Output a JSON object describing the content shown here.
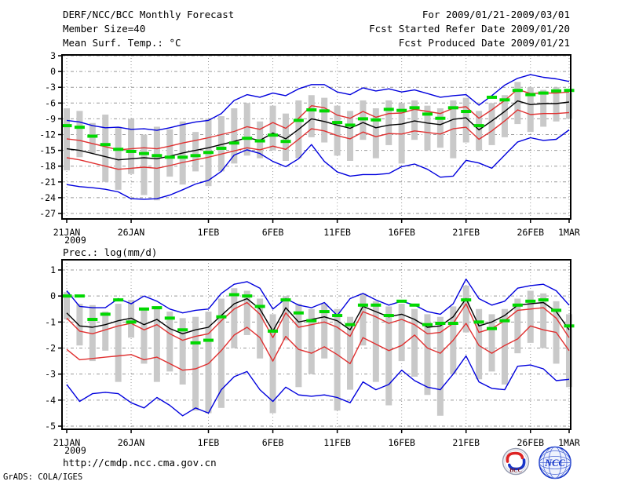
{
  "header": {
    "left": [
      "DERF/NCC/BCC Monthly Forecast",
      "Member Size=40"
    ],
    "right": [
      "For 2009/01/21-2009/03/01",
      "Fcst Started Refer Date 2009/01/20",
      "Fcst Produced Date 2009/01/21"
    ]
  },
  "footer": {
    "url": "http://cmdp.ncc.cma.gov.cn",
    "credit": "GrADS: COLA/IGES",
    "bcc_logo_label": "BCC",
    "ncc_logo_label": "NCC"
  },
  "colors": {
    "ensemble_mean": "#000000",
    "bounds_red": "#e03030",
    "extremes_blue": "#0000dd",
    "observation_green": "#00d800",
    "spread_bar_gray": "#c9c9c9",
    "grid_gray": "#999999",
    "frame_black": "#000000"
  },
  "chart_data": [
    {
      "type": "line",
      "title": "Mean Surf. Temp.: °C",
      "x_tick_labels": [
        "21JAN",
        "26JAN",
        "1FEB",
        "6FEB",
        "11FEB",
        "16FEB",
        "21FEB",
        "26FEB",
        "1MAR"
      ],
      "x_tick_days": [
        0,
        5,
        11,
        16,
        21,
        26,
        31,
        36,
        39
      ],
      "year_label": "2009",
      "y_ticks": [
        3,
        0,
        -3,
        -6,
        -9,
        -12,
        -15,
        -18,
        -21,
        -24,
        -27
      ],
      "ylim": [
        -28.2,
        3.2
      ],
      "n_days": 40,
      "grid": true,
      "legend": "none",
      "series": [
        {
          "name": "ensemble-max",
          "color": "#0000dd",
          "values": [
            -9.3,
            -9.6,
            -10.3,
            -10.7,
            -10.6,
            -11.0,
            -10.9,
            -11.2,
            -10.7,
            -10.1,
            -9.6,
            -9.3,
            -8.0,
            -5.5,
            -4.4,
            -4.9,
            -4.1,
            -4.6,
            -3.3,
            -2.5,
            -2.5,
            -3.9,
            -4.4,
            -3.1,
            -3.7,
            -3.3,
            -3.9,
            -3.5,
            -4.2,
            -4.9,
            -4.6,
            -4.4,
            -6.4,
            -4.6,
            -2.6,
            -1.3,
            -0.6,
            -1.1,
            -1.4,
            -1.9
          ]
        },
        {
          "name": "upper-bound",
          "color": "#e03030",
          "values": [
            -12.8,
            -13.1,
            -13.7,
            -14.3,
            -14.9,
            -14.7,
            -14.5,
            -14.7,
            -14.2,
            -13.6,
            -13.1,
            -12.6,
            -12.0,
            -11.4,
            -10.5,
            -11.0,
            -9.7,
            -10.8,
            -8.9,
            -6.5,
            -6.9,
            -8.3,
            -8.9,
            -7.6,
            -8.7,
            -8.0,
            -7.9,
            -7.2,
            -7.6,
            -8.0,
            -7.0,
            -6.7,
            -8.9,
            -7.3,
            -5.5,
            -3.4,
            -4.2,
            -4.1,
            -4.1,
            -3.9
          ]
        },
        {
          "name": "ensemble-mean",
          "color": "#000000",
          "values": [
            -14.7,
            -15.0,
            -15.6,
            -16.2,
            -16.8,
            -16.6,
            -16.4,
            -16.6,
            -16.1,
            -15.5,
            -15.0,
            -14.5,
            -13.9,
            -13.3,
            -12.6,
            -13.1,
            -11.7,
            -12.8,
            -11.0,
            -9.0,
            -9.5,
            -10.2,
            -10.8,
            -9.7,
            -10.7,
            -10.2,
            -10.0,
            -9.4,
            -9.8,
            -10.1,
            -9.1,
            -8.8,
            -11.1,
            -9.4,
            -7.6,
            -5.6,
            -6.3,
            -6.1,
            -6.1,
            -5.8
          ]
        },
        {
          "name": "lower-bound",
          "color": "#e03030",
          "values": [
            -16.4,
            -16.8,
            -17.4,
            -18.0,
            -18.6,
            -18.4,
            -18.2,
            -18.4,
            -17.9,
            -17.3,
            -16.8,
            -16.3,
            -15.7,
            -15.1,
            -14.5,
            -14.9,
            -14.2,
            -14.8,
            -12.9,
            -10.9,
            -11.3,
            -12.2,
            -12.8,
            -11.5,
            -12.4,
            -11.8,
            -11.9,
            -11.3,
            -11.6,
            -11.9,
            -10.9,
            -10.6,
            -12.9,
            -11.3,
            -9.4,
            -7.3,
            -8.2,
            -8.0,
            -8.0,
            -7.8
          ]
        },
        {
          "name": "ensemble-min",
          "color": "#0000dd",
          "values": [
            -21.5,
            -21.9,
            -22.1,
            -22.4,
            -22.9,
            -24.2,
            -24.3,
            -24.2,
            -23.5,
            -22.5,
            -21.4,
            -20.7,
            -19.0,
            -15.9,
            -14.9,
            -15.6,
            -17.1,
            -18.1,
            -16.6,
            -13.9,
            -17.1,
            -19.1,
            -19.9,
            -19.6,
            -19.6,
            -19.4,
            -18.1,
            -17.6,
            -18.6,
            -20.1,
            -19.9,
            -16.9,
            -17.4,
            -18.4,
            -15.9,
            -13.4,
            -12.6,
            -13.1,
            -12.9,
            -11.1
          ]
        }
      ],
      "obs_dashes": {
        "name": "observation",
        "color": "#00d800",
        "values": [
          -10.3,
          -10.6,
          -12.3,
          -13.9,
          -14.8,
          -15.2,
          -15.6,
          -16.0,
          -16.3,
          -16.3,
          -16.0,
          -15.4,
          -14.6,
          -13.6,
          -12.7,
          -13.2,
          -12.1,
          -13.3,
          -9.3,
          -7.3,
          -7.5,
          -9.7,
          -10.2,
          -9.0,
          -9.2,
          -7.2,
          -7.4,
          -6.9,
          -8.1,
          -8.9,
          -6.9,
          -7.6,
          -10.3,
          -4.9,
          -5.4,
          -3.6,
          -4.4,
          -4.1,
          -3.7,
          -3.6
        ]
      },
      "spread_bars": {
        "name": "ensemble-spread",
        "color": "#c9c9c9",
        "top": [
          -7.0,
          -7.5,
          -9.8,
          -8.2,
          -10.5,
          -9.0,
          -12.0,
          -10.5,
          -11.0,
          -9.5,
          -11.5,
          -9.0,
          -8.5,
          -7.0,
          -6.0,
          -9.5,
          -6.5,
          -8.0,
          -5.5,
          -4.5,
          -5.0,
          -6.5,
          -7.5,
          -5.5,
          -7.0,
          -5.5,
          -6.0,
          -5.5,
          -6.5,
          -7.0,
          -5.5,
          -5.0,
          -7.5,
          -6.0,
          -4.5,
          -2.0,
          -3.0,
          -3.5,
          -3.0,
          -4.0
        ],
        "bottom": [
          -18.8,
          -16.3,
          -15.5,
          -21.0,
          -22.5,
          -19.5,
          -23.5,
          -24.5,
          -20.0,
          -21.5,
          -19.0,
          -21.8,
          -19.0,
          -17.5,
          -16.0,
          -16.5,
          -15.0,
          -17.0,
          -16.5,
          -12.5,
          -13.5,
          -16.0,
          -17.0,
          -13.0,
          -16.5,
          -14.0,
          -17.5,
          -13.0,
          -15.0,
          -14.5,
          -16.5,
          -13.5,
          -15.0,
          -14.0,
          -12.5,
          -10.0,
          -11.5,
          -10.5,
          -9.5,
          -9.0
        ]
      }
    },
    {
      "type": "line",
      "title": "Prec.: log(mm/d)",
      "x_tick_labels": [
        "21JAN",
        "26JAN",
        "1FEB",
        "6FEB",
        "11FEB",
        "16FEB",
        "21FEB",
        "26FEB",
        "1MAR"
      ],
      "x_tick_days": [
        0,
        5,
        11,
        16,
        21,
        26,
        31,
        36,
        39
      ],
      "year_label": "2009",
      "y_ticks": [
        1,
        0,
        -1,
        -2,
        -3,
        -4,
        -5
      ],
      "ylim": [
        -5.15,
        1.4
      ],
      "n_days": 40,
      "grid": true,
      "legend": "none",
      "series": [
        {
          "name": "ensemble-max",
          "color": "#0000dd",
          "values": [
            0.2,
            -0.4,
            -0.45,
            -0.45,
            -0.1,
            -0.3,
            0.0,
            -0.2,
            -0.5,
            -0.65,
            -0.55,
            -0.5,
            0.1,
            0.45,
            0.55,
            0.3,
            -0.5,
            -0.1,
            -0.35,
            -0.45,
            -0.25,
            -0.75,
            -0.1,
            0.1,
            -0.15,
            -0.35,
            -0.2,
            -0.35,
            -0.6,
            -0.7,
            -0.3,
            0.65,
            -0.1,
            -0.35,
            -0.2,
            0.3,
            0.4,
            0.45,
            0.2,
            -0.35
          ]
        },
        {
          "name": "upper-bound",
          "color": "#e03030",
          "values": [
            -0.85,
            -1.35,
            -1.45,
            -1.3,
            -1.15,
            -1.05,
            -1.3,
            -1.1,
            -1.45,
            -1.7,
            -1.55,
            -1.45,
            -0.95,
            -0.5,
            -0.25,
            -0.7,
            -1.6,
            -0.65,
            -1.2,
            -1.1,
            -1.0,
            -1.2,
            -1.55,
            -0.6,
            -0.8,
            -1.05,
            -0.9,
            -1.1,
            -1.45,
            -1.4,
            -1.05,
            -0.3,
            -1.4,
            -1.25,
            -0.95,
            -0.55,
            -0.5,
            -0.45,
            -0.85,
            -1.6
          ]
        },
        {
          "name": "ensemble-mean",
          "color": "#000000",
          "values": [
            -0.65,
            -1.15,
            -1.2,
            -1.1,
            -0.95,
            -0.85,
            -1.1,
            -0.9,
            -1.25,
            -1.45,
            -1.3,
            -1.2,
            -0.75,
            -0.3,
            -0.1,
            -0.5,
            -1.35,
            -0.45,
            -1.0,
            -0.9,
            -0.8,
            -0.95,
            -1.3,
            -0.4,
            -0.6,
            -0.8,
            -0.7,
            -0.9,
            -1.2,
            -1.15,
            -0.8,
            -0.1,
            -1.15,
            -1.0,
            -0.75,
            -0.35,
            -0.3,
            -0.25,
            -0.6,
            -1.3
          ]
        },
        {
          "name": "lower-bound",
          "color": "#e03030",
          "values": [
            -2.05,
            -2.45,
            -2.4,
            -2.35,
            -2.3,
            -2.25,
            -2.45,
            -2.35,
            -2.6,
            -2.85,
            -2.8,
            -2.6,
            -2.1,
            -1.5,
            -1.2,
            -1.6,
            -2.5,
            -1.55,
            -2.05,
            -2.2,
            -1.95,
            -2.25,
            -2.6,
            -1.6,
            -1.85,
            -2.1,
            -1.9,
            -1.5,
            -2.0,
            -2.2,
            -1.7,
            -1.05,
            -1.9,
            -2.2,
            -1.9,
            -1.65,
            -1.15,
            -1.3,
            -1.4,
            -2.1
          ]
        },
        {
          "name": "ensemble-min",
          "color": "#0000dd",
          "values": [
            -3.4,
            -4.05,
            -3.75,
            -3.7,
            -3.75,
            -4.1,
            -4.3,
            -3.9,
            -4.2,
            -4.6,
            -4.3,
            -4.5,
            -3.6,
            -3.1,
            -2.9,
            -3.6,
            -4.05,
            -3.5,
            -3.8,
            -3.85,
            -3.8,
            -3.9,
            -4.1,
            -3.3,
            -3.6,
            -3.4,
            -2.85,
            -3.25,
            -3.5,
            -3.6,
            -3.0,
            -2.3,
            -3.3,
            -3.55,
            -3.6,
            -2.7,
            -2.65,
            -2.8,
            -3.25,
            -3.2
          ]
        }
      ],
      "obs_dashes": {
        "name": "observation",
        "color": "#00d800",
        "values": [
          0.0,
          0.0,
          -0.9,
          -0.7,
          -0.15,
          -1.0,
          -0.5,
          -0.45,
          -0.85,
          -1.3,
          -1.8,
          -1.7,
          -0.8,
          0.05,
          0.0,
          -0.4,
          -1.35,
          -0.15,
          -0.65,
          -0.95,
          -0.6,
          -0.75,
          -1.1,
          -0.35,
          -0.35,
          -0.75,
          -0.2,
          -0.35,
          -1.1,
          -1.05,
          -1.05,
          -0.15,
          -1.0,
          -1.25,
          -0.95,
          -0.35,
          -0.2,
          -0.15,
          -0.55,
          -1.15
        ]
      },
      "spread_bars": {
        "name": "ensemble-spread",
        "color": "#c9c9c9",
        "top": [
          0.15,
          -0.3,
          -0.35,
          -0.6,
          -0.3,
          -0.15,
          -0.5,
          -0.4,
          -0.6,
          -0.85,
          -0.8,
          -0.6,
          -0.1,
          0.3,
          0.2,
          -0.1,
          -0.7,
          0.0,
          -0.3,
          -0.5,
          -0.3,
          -0.5,
          -0.8,
          0.1,
          -0.2,
          -0.4,
          -0.3,
          -0.5,
          -0.7,
          -0.8,
          -0.4,
          0.4,
          -0.5,
          -0.7,
          -0.5,
          -0.1,
          0.2,
          0.1,
          -0.2,
          -0.7
        ],
        "bottom": [
          -0.9,
          -1.9,
          -2.5,
          -2.1,
          -3.3,
          -1.6,
          -2.6,
          -3.3,
          -2.9,
          -3.4,
          -4.4,
          -4.5,
          -4.3,
          -2.0,
          -1.5,
          -2.4,
          -4.5,
          -1.7,
          -3.5,
          -3.0,
          -2.4,
          -4.4,
          -3.6,
          -1.9,
          -3.3,
          -4.2,
          -2.5,
          -3.1,
          -3.8,
          -4.6,
          -3.0,
          -1.4,
          -3.2,
          -2.9,
          -3.4,
          -2.2,
          -1.8,
          -2.0,
          -2.6,
          -3.5
        ]
      }
    }
  ]
}
